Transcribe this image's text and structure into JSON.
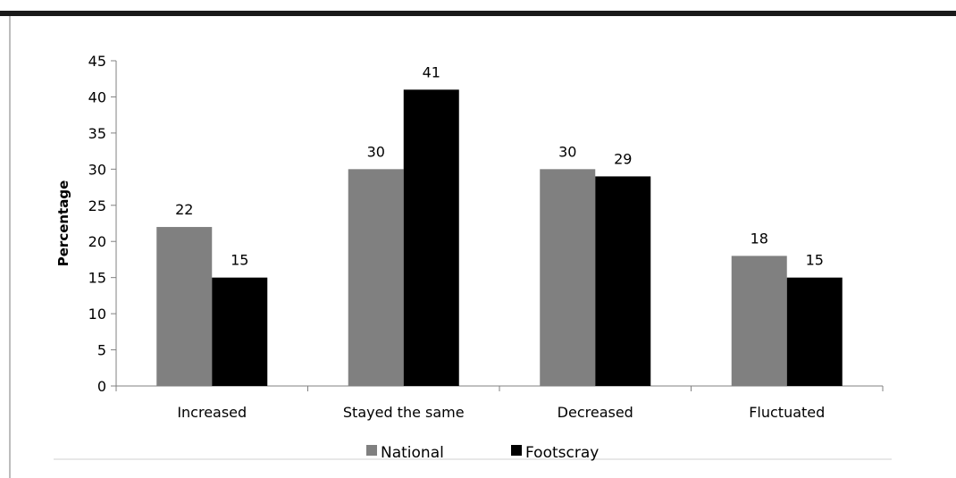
{
  "chart_data": {
    "type": "bar",
    "title": "",
    "xlabel": "",
    "ylabel": "Percentage",
    "categories": [
      "Increased",
      "Stayed the same",
      "Decreased",
      "Fluctuated"
    ],
    "series": [
      {
        "name": "National",
        "values": [
          22,
          30,
          30,
          18
        ],
        "color": "#808080"
      },
      {
        "name": "Footscray",
        "values": [
          15,
          41,
          29,
          15
        ],
        "color": "#000000"
      }
    ],
    "ylim": [
      0,
      45
    ],
    "yticks": [
      0,
      5,
      10,
      15,
      20,
      25,
      30,
      35,
      40,
      45
    ],
    "grid": false,
    "legend": "bottom"
  }
}
